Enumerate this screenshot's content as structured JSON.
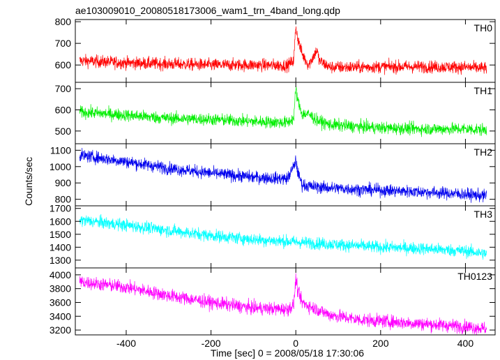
{
  "chart_data": {
    "type": "line",
    "title": "ae103009010_20080518173006_wam1_trn_4band_long.qdp",
    "xlabel": "Time [sec] 0 = 2008/05/18 17:30:06",
    "ylabel": "Counts/sec",
    "xlim": [
      -520,
      470
    ],
    "x_ticks": [
      -400,
      -200,
      0,
      200,
      400
    ],
    "panels": [
      {
        "name": "TH0",
        "color": "#ff0000",
        "ylim": [
          520,
          810
        ],
        "y_ticks": [
          600,
          700,
          800
        ],
        "x": [
          -510,
          -400,
          -300,
          -200,
          -100,
          -20,
          -5,
          0,
          5,
          15,
          30,
          50,
          55,
          80,
          150,
          200,
          300,
          400,
          450
        ],
        "y": [
          620,
          610,
          605,
          600,
          600,
          598,
          620,
          780,
          720,
          650,
          600,
          670,
          620,
          590,
          590,
          592,
          592,
          590,
          585
        ]
      },
      {
        "name": "TH1",
        "color": "#00ee00",
        "ylim": [
          440,
          730
        ],
        "y_ticks": [
          500,
          600,
          700
        ],
        "x": [
          -510,
          -400,
          -300,
          -200,
          -100,
          -20,
          -5,
          0,
          5,
          15,
          30,
          50,
          80,
          150,
          200,
          300,
          400,
          450
        ],
        "y": [
          590,
          575,
          560,
          555,
          545,
          540,
          560,
          700,
          640,
          580,
          580,
          550,
          530,
          520,
          515,
          510,
          510,
          505
        ]
      },
      {
        "name": "TH2",
        "color": "#0000ee",
        "ylim": [
          760,
          1140
        ],
        "y_ticks": [
          800,
          900,
          1000,
          1100
        ],
        "x": [
          -510,
          -400,
          -300,
          -200,
          -100,
          -20,
          -5,
          0,
          5,
          15,
          30,
          80,
          150,
          200,
          300,
          400,
          450
        ],
        "y": [
          1070,
          1030,
          990,
          960,
          935,
          925,
          1000,
          1040,
          960,
          890,
          880,
          870,
          860,
          855,
          845,
          830,
          820
        ]
      },
      {
        "name": "TH3",
        "color": "#00ffff",
        "ylim": [
          1240,
          1720
        ],
        "y_ticks": [
          1300,
          1400,
          1500,
          1600,
          1700
        ],
        "x": [
          -510,
          -400,
          -300,
          -200,
          -100,
          0,
          100,
          200,
          300,
          400,
          450
        ],
        "y": [
          1610,
          1570,
          1530,
          1490,
          1460,
          1440,
          1420,
          1400,
          1390,
          1370,
          1350
        ]
      },
      {
        "name": "TH0123",
        "color": "#ff00ff",
        "ylim": [
          3130,
          4100
        ],
        "y_ticks": [
          3200,
          3400,
          3600,
          3800,
          4000
        ],
        "x": [
          -510,
          -400,
          -300,
          -200,
          -100,
          -20,
          -5,
          0,
          5,
          15,
          30,
          50,
          80,
          150,
          200,
          300,
          400,
          450
        ],
        "y": [
          3900,
          3820,
          3700,
          3600,
          3520,
          3500,
          3560,
          3950,
          3750,
          3600,
          3550,
          3500,
          3420,
          3350,
          3330,
          3290,
          3250,
          3220
        ]
      }
    ]
  }
}
